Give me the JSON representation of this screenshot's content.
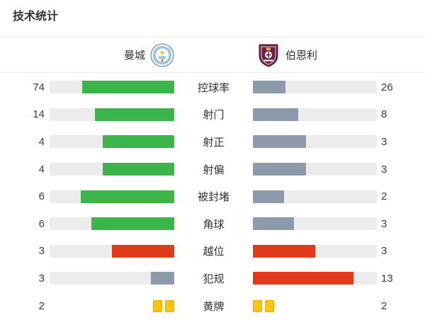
{
  "page": {
    "title": "技术统计"
  },
  "teams": {
    "home": {
      "name": "曼城",
      "crest_icon": "man-city-crest-icon"
    },
    "away": {
      "name": "伯恩利",
      "crest_icon": "burnley-crest-icon"
    }
  },
  "palette": {
    "green": "#3bb44a",
    "red": "#e23a1c",
    "gray": "#8c9aac",
    "track": "#ececec",
    "yellow_card": "#fdc40d",
    "yellow_card_border": "#e8a70c",
    "divider": "#ececec",
    "text": "#333333"
  },
  "stats": [
    {
      "label": "控球率",
      "home": 74,
      "away": 26,
      "home_color": "green",
      "away_color": "gray",
      "type": "bar"
    },
    {
      "label": "射门",
      "home": 14,
      "away": 8,
      "home_color": "green",
      "away_color": "gray",
      "type": "bar"
    },
    {
      "label": "射正",
      "home": 4,
      "away": 3,
      "home_color": "green",
      "away_color": "gray",
      "type": "bar"
    },
    {
      "label": "射偏",
      "home": 4,
      "away": 3,
      "home_color": "green",
      "away_color": "gray",
      "type": "bar"
    },
    {
      "label": "被封堵",
      "home": 6,
      "away": 2,
      "home_color": "green",
      "away_color": "gray",
      "type": "bar"
    },
    {
      "label": "角球",
      "home": 6,
      "away": 3,
      "home_color": "green",
      "away_color": "gray",
      "type": "bar"
    },
    {
      "label": "越位",
      "home": 3,
      "away": 3,
      "home_color": "red",
      "away_color": "red",
      "type": "bar"
    },
    {
      "label": "犯规",
      "home": 3,
      "away": 13,
      "home_color": "gray",
      "away_color": "red",
      "type": "bar"
    },
    {
      "label": "黄牌",
      "home": 2,
      "away": 2,
      "home_color": "yellow_card",
      "away_color": "yellow_card",
      "type": "cards"
    }
  ],
  "chart_data": {
    "type": "bar",
    "orientation": "horizontal-paired",
    "title": "技术统计",
    "categories": [
      "控球率",
      "射门",
      "射正",
      "射偏",
      "被封堵",
      "角球",
      "越位",
      "犯规",
      "黄牌"
    ],
    "series": [
      {
        "name": "曼城",
        "values": [
          74,
          14,
          4,
          4,
          6,
          6,
          3,
          3,
          2
        ]
      },
      {
        "name": "伯恩利",
        "values": [
          26,
          8,
          3,
          3,
          2,
          3,
          3,
          13,
          2
        ]
      }
    ],
    "layout": "each row: home value | home bar (fill anchored right) | centered label | away bar (fill anchored left) | away value; fill length = value / (home+away); yellow-cards row drawn as card icons"
  }
}
